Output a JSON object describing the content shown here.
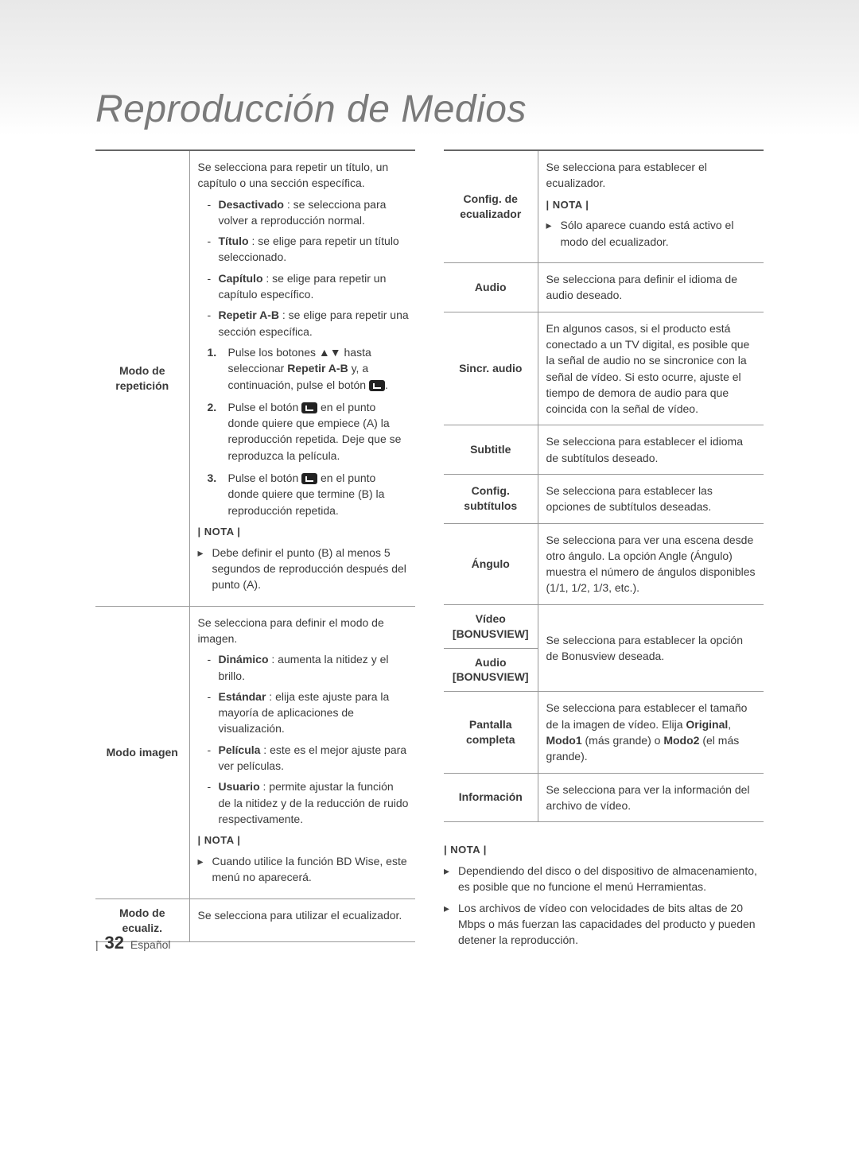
{
  "title": "Reproducción de Medios",
  "left": {
    "rows": [
      {
        "label": "Modo de repetición",
        "intro": "Se selecciona para repetir un título, un capítulo o una sección específica.",
        "items": [
          {
            "b": "Desactivado",
            "t": " : se selecciona para volver a reproducción normal."
          },
          {
            "b": "Título",
            "t": " : se elige para repetir un título seleccionado."
          },
          {
            "b": "Capítulo",
            "t": " : se elige para repetir un capítulo específico."
          },
          {
            "b": "Repetir A-B",
            "t": " : se elige para repetir una sección específica."
          }
        ],
        "steps": [
          "Pulse los botones ▲▼ hasta seleccionar <b>Repetir A-B</b> y, a continuación, pulse el botón <span class='enter-key'></span>.",
          "Pulse el botón <span class='enter-key'></span> en el punto donde quiere que empiece (A) la reproducción repetida. Deje que se reproduzca la película.",
          "Pulse el botón <span class='enter-key'></span> en el punto donde quiere que termine (B) la reproducción repetida."
        ],
        "nota_label": "| NOTA |",
        "notas": [
          "Debe definir el punto (B) al menos 5 segundos de reproducción después del punto (A)."
        ]
      },
      {
        "label": "Modo imagen",
        "intro": "Se selecciona para definir el modo de imagen.",
        "items": [
          {
            "b": "Dinámico",
            "t": " : aumenta la nitidez y el brillo."
          },
          {
            "b": "Estándar",
            "t": " : elija este ajuste para la mayoría de aplicaciones de visualización."
          },
          {
            "b": "Película",
            "t": " : este es el mejor ajuste para ver películas."
          },
          {
            "b": "Usuario",
            "t": " : permite ajustar la función de la nitidez y de la reducción de ruido respectivamente."
          }
        ],
        "nota_label": "| NOTA |",
        "notas": [
          "Cuando utilice la función BD Wise, este menú no aparecerá."
        ]
      },
      {
        "label": "Modo de ecualiz.",
        "desc": "Se selecciona para utilizar el ecualizador."
      }
    ]
  },
  "right": {
    "rows": [
      {
        "label": "Config. de ecualizador",
        "intro": "Se selecciona para establecer el ecualizador.",
        "nota_label": "| NOTA |",
        "notas": [
          "Sólo aparece cuando está activo el modo del ecualizador."
        ]
      },
      {
        "label": "Audio",
        "desc": "Se selecciona para definir el idioma de audio deseado."
      },
      {
        "label": "Sincr. audio",
        "desc": "En algunos casos, si el producto está conectado a un TV digital, es posible que la señal de audio no se sincronice con la señal de vídeo. Si esto ocurre, ajuste el tiempo de demora de audio para que coincida con la señal de vídeo."
      },
      {
        "label": "Subtitle",
        "desc": "Se selecciona para establecer el idioma de subtítulos deseado."
      },
      {
        "label": "Config. subtítulos",
        "desc": "Se selecciona para establecer las opciones de subtítulos deseadas."
      },
      {
        "label": "Ángulo",
        "desc": "Se selecciona para ver una escena desde otro ángulo. La opción Angle (Ángulo) muestra el número de ángulos disponibles (1/1, 1/2, 1/3, etc.)."
      },
      {
        "label": "Vídeo [BONUSVIEW]",
        "span_with_next": true
      },
      {
        "label": "Audio [BONUSVIEW]",
        "desc": "Se selecciona para establecer la opción de Bonusview deseada."
      },
      {
        "label": "Pantalla completa",
        "desc_html": "Se selecciona para establecer el tamaño de la imagen de vídeo. Elija <b>Original</b>, <b>Modo1</b> (más grande) o <b>Modo2</b> (el más grande)."
      },
      {
        "label": "Información",
        "desc": "Se selecciona para ver la información del archivo de vídeo."
      }
    ]
  },
  "footer_nota_label": "| NOTA |",
  "footer_notas": [
    "Dependiendo del disco o del dispositivo de almacenamiento, es posible que no funcione el menú Herramientas.",
    "Los archivos de vídeo con velocidades de bits altas de 20 Mbps o más fuerzan las capacidades del producto y pueden detener la reproducción."
  ],
  "page_number": "32",
  "page_lang": "Español"
}
